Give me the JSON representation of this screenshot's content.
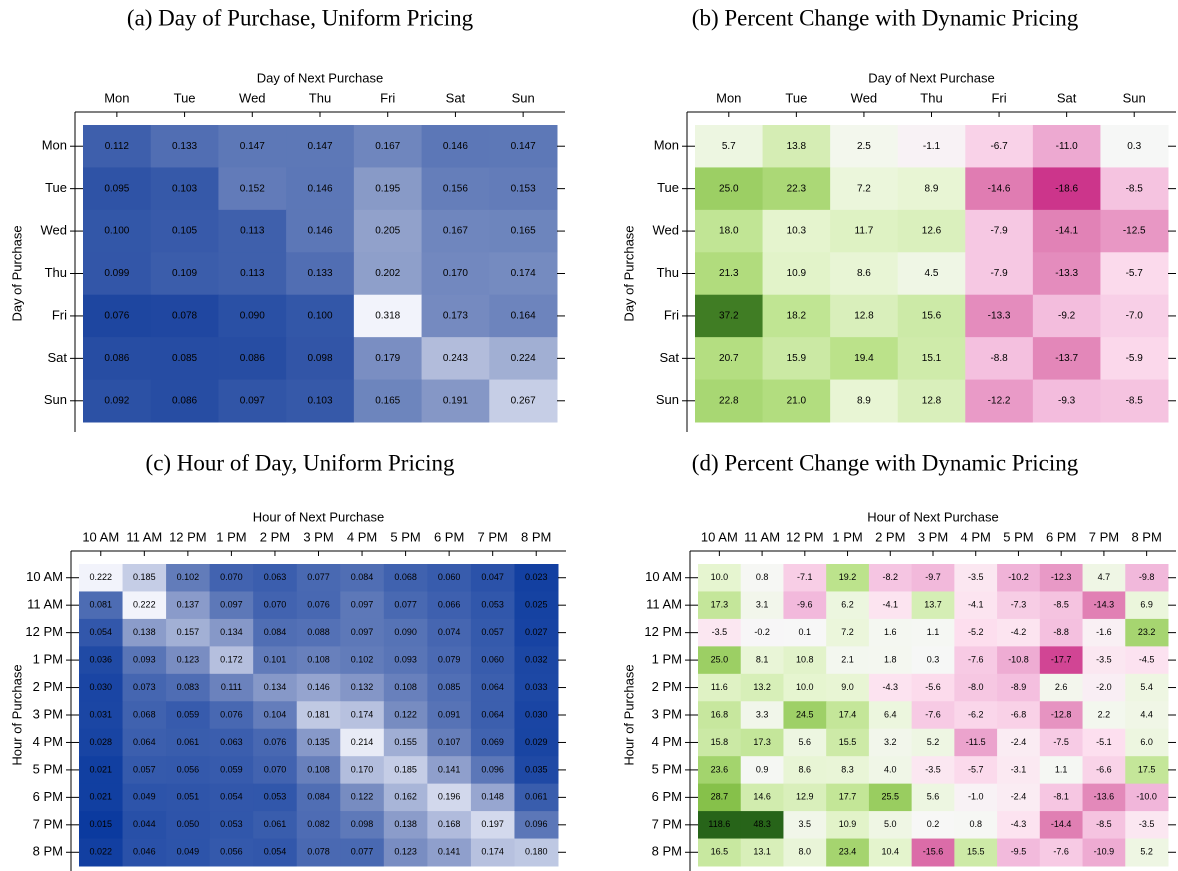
{
  "chart_data": [
    {
      "type": "heatmap",
      "title": "(a) Day of Purchase, Uniform Pricing",
      "x_label": "Day of Next Purchase",
      "y_label": "Day of Purchase",
      "x_categories": [
        "Mon",
        "Tue",
        "Wed",
        "Thu",
        "Fri",
        "Sat",
        "Sun"
      ],
      "y_categories": [
        "Mon",
        "Tue",
        "Wed",
        "Thu",
        "Fri",
        "Sat",
        "Sun"
      ],
      "values": [
        [
          0.112,
          0.133,
          0.147,
          0.147,
          0.167,
          0.146,
          0.147
        ],
        [
          0.095,
          0.103,
          0.152,
          0.146,
          0.195,
          0.156,
          0.153
        ],
        [
          0.1,
          0.105,
          0.113,
          0.146,
          0.205,
          0.167,
          0.165
        ],
        [
          0.099,
          0.109,
          0.113,
          0.133,
          0.202,
          0.17,
          0.174
        ],
        [
          0.076,
          0.078,
          0.09,
          0.1,
          0.318,
          0.173,
          0.164
        ],
        [
          0.086,
          0.085,
          0.086,
          0.098,
          0.179,
          0.243,
          0.224
        ],
        [
          0.092,
          0.086,
          0.097,
          0.103,
          0.165,
          0.191,
          0.267
        ]
      ],
      "value_labels": [
        [
          "0.112",
          "0.133",
          "0.147",
          "0.147",
          "0.167",
          "0.146",
          "0.147"
        ],
        [
          "0.095",
          "0.103",
          "0.152",
          "0.146",
          "0.195",
          "0.156",
          "0.153"
        ],
        [
          "0.100",
          "0.105",
          "0.113",
          "0.146",
          "0.205",
          "0.167",
          "0.165"
        ],
        [
          "0.099",
          "0.109",
          "0.113",
          "0.133",
          "0.202",
          "0.170",
          "0.174"
        ],
        [
          "0.076",
          "0.078",
          "0.090",
          "0.100",
          "0.318",
          "0.173",
          "0.164"
        ],
        [
          "0.086",
          "0.085",
          "0.086",
          "0.098",
          "0.179",
          "0.243",
          "0.224"
        ],
        [
          "0.092",
          "0.086",
          "0.097",
          "0.103",
          "0.165",
          "0.191",
          "0.267"
        ]
      ],
      "colormap": [
        "#1e46a0",
        "#8a9bc8",
        "#f2f3fb"
      ],
      "clim": [
        0.076,
        0.318
      ]
    },
    {
      "type": "heatmap",
      "title": "(b) Percent Change with Dynamic Pricing",
      "x_label": "Day of Next Purchase",
      "y_label": "Day of Purchase",
      "x_categories": [
        "Mon",
        "Tue",
        "Wed",
        "Thu",
        "Fri",
        "Sat",
        "Sun"
      ],
      "y_categories": [
        "Mon",
        "Tue",
        "Wed",
        "Thu",
        "Fri",
        "Sat",
        "Sun"
      ],
      "values": [
        [
          5.7,
          13.8,
          2.5,
          -1.1,
          -6.7,
          -11.0,
          0.3
        ],
        [
          25.0,
          22.3,
          7.2,
          8.9,
          -14.6,
          -18.6,
          -8.5
        ],
        [
          18.0,
          10.3,
          11.7,
          12.6,
          -7.9,
          -14.1,
          -12.5
        ],
        [
          21.3,
          10.9,
          8.6,
          4.5,
          -7.9,
          -13.3,
          -5.7
        ],
        [
          37.2,
          18.2,
          12.8,
          15.6,
          -13.3,
          -9.2,
          -7.0
        ],
        [
          20.7,
          15.9,
          19.4,
          15.1,
          -8.8,
          -13.7,
          -5.9
        ],
        [
          22.8,
          21.0,
          8.9,
          12.8,
          -12.2,
          -9.3,
          -8.5
        ]
      ],
      "value_labels": [
        [
          "5.7",
          "13.8",
          "2.5",
          "-1.1",
          "-6.7",
          "-11.0",
          "0.3"
        ],
        [
          "25.0",
          "22.3",
          "7.2",
          "8.9",
          "-14.6",
          "-18.6",
          "-8.5"
        ],
        [
          "18.0",
          "10.3",
          "11.7",
          "12.6",
          "-7.9",
          "-14.1",
          "-12.5"
        ],
        [
          "21.3",
          "10.9",
          "8.6",
          "4.5",
          "-7.9",
          "-13.3",
          "-5.7"
        ],
        [
          "37.2",
          "18.2",
          "12.8",
          "15.6",
          "-13.3",
          "-9.2",
          "-7.0"
        ],
        [
          "20.7",
          "15.9",
          "19.4",
          "15.1",
          "-8.8",
          "-13.7",
          "-5.9"
        ],
        [
          "22.8",
          "21.0",
          "8.9",
          "12.8",
          "-12.2",
          "-9.3",
          "-8.5"
        ]
      ],
      "colormap": [
        "#c51b7d",
        "#de77ae",
        "#f1b6da",
        "#fde0ef",
        "#f7f7f7",
        "#e6f5d0",
        "#b8e186",
        "#7fbc41",
        "#276419"
      ],
      "clim": [
        -20,
        40
      ],
      "center": 0
    },
    {
      "type": "heatmap",
      "title": "(c) Hour of Day, Uniform Pricing",
      "x_label": "Hour of Next Purchase",
      "y_label": "Hour of Purchase",
      "x_categories": [
        "10 AM",
        "11 AM",
        "12 PM",
        "1 PM",
        "2 PM",
        "3 PM",
        "4 PM",
        "5 PM",
        "6 PM",
        "7 PM",
        "8 PM"
      ],
      "y_categories": [
        "10 AM",
        "11 AM",
        "12 PM",
        "1 PM",
        "2 PM",
        "3 PM",
        "4 PM",
        "5 PM",
        "6 PM",
        "7 PM",
        "8 PM"
      ],
      "values": [
        [
          0.222,
          0.185,
          0.102,
          0.07,
          0.063,
          0.077,
          0.084,
          0.068,
          0.06,
          0.047,
          0.023
        ],
        [
          0.081,
          0.222,
          0.137,
          0.097,
          0.07,
          0.076,
          0.097,
          0.077,
          0.066,
          0.053,
          0.025
        ],
        [
          0.054,
          0.138,
          0.157,
          0.134,
          0.084,
          0.088,
          0.097,
          0.09,
          0.074,
          0.057,
          0.027
        ],
        [
          0.036,
          0.093,
          0.123,
          0.172,
          0.101,
          0.108,
          0.102,
          0.093,
          0.079,
          0.06,
          0.032
        ],
        [
          0.03,
          0.073,
          0.083,
          0.111,
          0.134,
          0.146,
          0.132,
          0.108,
          0.085,
          0.064,
          0.033
        ],
        [
          0.031,
          0.068,
          0.059,
          0.076,
          0.104,
          0.181,
          0.174,
          0.122,
          0.091,
          0.064,
          0.03
        ],
        [
          0.028,
          0.064,
          0.061,
          0.063,
          0.076,
          0.135,
          0.214,
          0.155,
          0.107,
          0.069,
          0.029
        ],
        [
          0.021,
          0.057,
          0.056,
          0.059,
          0.07,
          0.108,
          0.17,
          0.185,
          0.141,
          0.096,
          0.035
        ],
        [
          0.021,
          0.049,
          0.051,
          0.054,
          0.053,
          0.084,
          0.122,
          0.162,
          0.196,
          0.148,
          0.061
        ],
        [
          0.015,
          0.044,
          0.05,
          0.053,
          0.061,
          0.082,
          0.098,
          0.138,
          0.168,
          0.197,
          0.096
        ],
        [
          0.022,
          0.046,
          0.049,
          0.056,
          0.054,
          0.078,
          0.077,
          0.123,
          0.141,
          0.174,
          0.18
        ]
      ],
      "value_labels": [
        [
          "0.222",
          "0.185",
          "0.102",
          "0.070",
          "0.063",
          "0.077",
          "0.084",
          "0.068",
          "0.060",
          "0.047",
          "0.023"
        ],
        [
          "0.081",
          "0.222",
          "0.137",
          "0.097",
          "0.070",
          "0.076",
          "0.097",
          "0.077",
          "0.066",
          "0.053",
          "0.025"
        ],
        [
          "0.054",
          "0.138",
          "0.157",
          "0.134",
          "0.084",
          "0.088",
          "0.097",
          "0.090",
          "0.074",
          "0.057",
          "0.027"
        ],
        [
          "0.036",
          "0.093",
          "0.123",
          "0.172",
          "0.101",
          "0.108",
          "0.102",
          "0.093",
          "0.079",
          "0.060",
          "0.032"
        ],
        [
          "0.030",
          "0.073",
          "0.083",
          "0.111",
          "0.134",
          "0.146",
          "0.132",
          "0.108",
          "0.085",
          "0.064",
          "0.033"
        ],
        [
          "0.031",
          "0.068",
          "0.059",
          "0.076",
          "0.104",
          "0.181",
          "0.174",
          "0.122",
          "0.091",
          "0.064",
          "0.030"
        ],
        [
          "0.028",
          "0.064",
          "0.061",
          "0.063",
          "0.076",
          "0.135",
          "0.214",
          "0.155",
          "0.107",
          "0.069",
          "0.029"
        ],
        [
          "0.021",
          "0.057",
          "0.056",
          "0.059",
          "0.070",
          "0.108",
          "0.170",
          "0.185",
          "0.141",
          "0.096",
          "0.035"
        ],
        [
          "0.021",
          "0.049",
          "0.051",
          "0.054",
          "0.053",
          "0.084",
          "0.122",
          "0.162",
          "0.196",
          "0.148",
          "0.061"
        ],
        [
          "0.015",
          "0.044",
          "0.050",
          "0.053",
          "0.061",
          "0.082",
          "0.098",
          "0.138",
          "0.168",
          "0.197",
          "0.096"
        ],
        [
          "0.022",
          "0.046",
          "0.049",
          "0.056",
          "0.054",
          "0.078",
          "0.077",
          "0.123",
          "0.141",
          "0.174",
          "0.180"
        ]
      ],
      "colormap": [
        "#0b3a9f",
        "#7388bf",
        "#f2f3fb"
      ],
      "clim": [
        0.015,
        0.222
      ]
    },
    {
      "type": "heatmap",
      "title": "(d) Percent Change with Dynamic Pricing",
      "x_label": "Hour of Next Purchase",
      "y_label": "Hour of Purchase",
      "x_categories": [
        "10 AM",
        "11 AM",
        "12 PM",
        "1 PM",
        "2 PM",
        "3 PM",
        "4 PM",
        "5 PM",
        "6 PM",
        "7 PM",
        "8 PM"
      ],
      "y_categories": [
        "10 AM",
        "11 AM",
        "12 PM",
        "1 PM",
        "2 PM",
        "3 PM",
        "4 PM",
        "5 PM",
        "6 PM",
        "7 PM",
        "8 PM"
      ],
      "values": [
        [
          10.0,
          0.8,
          -7.1,
          19.2,
          -8.2,
          -9.7,
          -3.5,
          -10.2,
          -12.3,
          4.7,
          -9.8
        ],
        [
          17.3,
          3.1,
          -9.6,
          6.2,
          -4.1,
          13.7,
          -4.1,
          -7.3,
          -8.5,
          -14.3,
          6.9
        ],
        [
          -3.5,
          -0.2,
          0.1,
          7.2,
          1.6,
          1.1,
          -5.2,
          -4.2,
          -8.8,
          -1.6,
          23.2
        ],
        [
          25.0,
          8.1,
          10.8,
          2.1,
          1.8,
          0.3,
          -7.6,
          -10.8,
          -17.7,
          -3.5,
          -4.5
        ],
        [
          11.6,
          13.2,
          10.0,
          9.0,
          -4.3,
          -5.6,
          -8.0,
          -8.9,
          2.6,
          -2.0,
          5.4
        ],
        [
          16.8,
          3.3,
          24.5,
          17.4,
          6.4,
          -7.6,
          -6.2,
          -6.8,
          -12.8,
          2.2,
          4.4
        ],
        [
          15.8,
          17.3,
          5.6,
          15.5,
          3.2,
          5.2,
          -11.5,
          -2.4,
          -7.5,
          -5.1,
          6.0
        ],
        [
          23.6,
          0.9,
          8.6,
          8.3,
          4.0,
          -3.5,
          -5.7,
          -3.1,
          1.1,
          -6.6,
          17.5
        ],
        [
          28.7,
          14.6,
          12.9,
          17.7,
          25.5,
          5.6,
          -1.0,
          -2.4,
          -8.1,
          -13.6,
          -10.0
        ],
        [
          118.6,
          48.3,
          3.5,
          10.9,
          5.0,
          0.2,
          0.8,
          -4.3,
          -14.4,
          -8.5,
          -3.5
        ],
        [
          16.5,
          13.1,
          8.0,
          23.4,
          10.4,
          -15.6,
          15.5,
          -9.5,
          -7.6,
          -10.9,
          5.2
        ]
      ],
      "value_labels": [
        [
          "10.0",
          "0.8",
          "-7.1",
          "19.2",
          "-8.2",
          "-9.7",
          "-3.5",
          "-10.2",
          "-12.3",
          "4.7",
          "-9.8"
        ],
        [
          "17.3",
          "3.1",
          "-9.6",
          "6.2",
          "-4.1",
          "13.7",
          "-4.1",
          "-7.3",
          "-8.5",
          "-14.3",
          "6.9"
        ],
        [
          "-3.5",
          "-0.2",
          "0.1",
          "7.2",
          "1.6",
          "1.1",
          "-5.2",
          "-4.2",
          "-8.8",
          "-1.6",
          "23.2"
        ],
        [
          "25.0",
          "8.1",
          "10.8",
          "2.1",
          "1.8",
          "0.3",
          "-7.6",
          "-10.8",
          "-17.7",
          "-3.5",
          "-4.5"
        ],
        [
          "11.6",
          "13.2",
          "10.0",
          "9.0",
          "-4.3",
          "-5.6",
          "-8.0",
          "-8.9",
          "2.6",
          "-2.0",
          "5.4"
        ],
        [
          "16.8",
          "3.3",
          "24.5",
          "17.4",
          "6.4",
          "-7.6",
          "-6.2",
          "-6.8",
          "-12.8",
          "2.2",
          "4.4"
        ],
        [
          "15.8",
          "17.3",
          "5.6",
          "15.5",
          "3.2",
          "5.2",
          "-11.5",
          "-2.4",
          "-7.5",
          "-5.1",
          "6.0"
        ],
        [
          "23.6",
          "0.9",
          "8.6",
          "8.3",
          "4.0",
          "-3.5",
          "-5.7",
          "-3.1",
          "1.1",
          "-6.6",
          "17.5"
        ],
        [
          "28.7",
          "14.6",
          "12.9",
          "17.7",
          "25.5",
          "5.6",
          "-1.0",
          "-2.4",
          "-8.1",
          "-13.6",
          "-10.0"
        ],
        [
          "118.6",
          "48.3",
          "3.5",
          "10.9",
          "5.0",
          "0.2",
          "0.8",
          "-4.3",
          "-14.4",
          "-8.5",
          "-3.5"
        ],
        [
          "16.5",
          "13.1",
          "8.0",
          "23.4",
          "10.4",
          "-15.6",
          "15.5",
          "-9.5",
          "-7.6",
          "-10.9",
          "5.2"
        ]
      ],
      "colormap": [
        "#c51b7d",
        "#de77ae",
        "#f1b6da",
        "#fde0ef",
        "#f7f7f7",
        "#e6f5d0",
        "#b8e186",
        "#7fbc41",
        "#276419"
      ],
      "clim": [
        -20,
        40
      ],
      "center": 0
    }
  ]
}
